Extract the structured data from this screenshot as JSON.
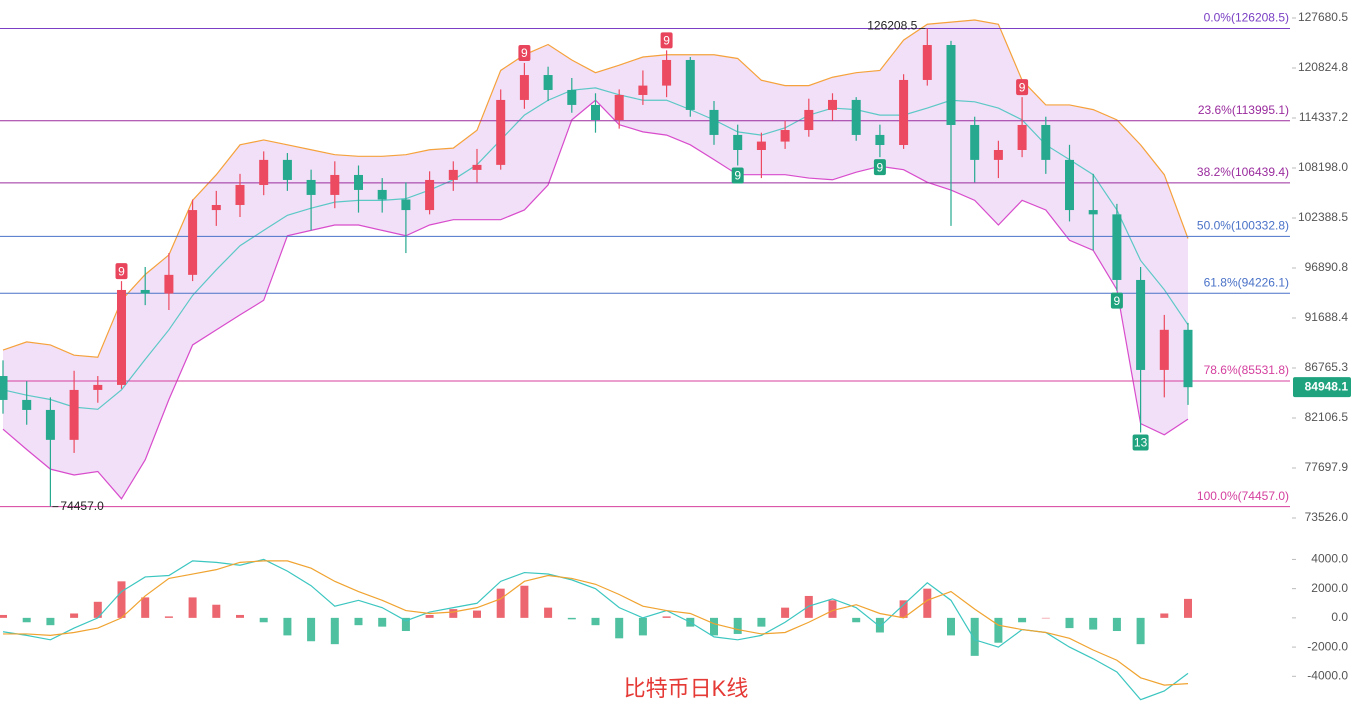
{
  "chart_data": [
    {
      "type": "candlestick",
      "title": "比特币日K线",
      "categories": [
        null,
        null,
        null,
        null,
        null,
        null,
        null,
        null,
        null,
        null,
        null,
        null,
        null,
        null,
        null,
        null,
        null,
        null,
        null,
        null,
        null,
        null,
        null,
        null,
        null,
        null,
        null,
        null,
        null,
        null,
        null,
        null,
        null,
        null,
        null,
        null,
        null,
        null,
        null,
        null,
        null,
        null,
        null,
        null,
        null,
        null,
        null,
        null,
        null,
        null,
        null
      ],
      "open": [
        86000,
        83760,
        82840,
        80150,
        84690,
        85160,
        94570,
        94200,
        96160,
        103290,
        103870,
        106190,
        109170,
        106780,
        105030,
        107370,
        105610,
        104500,
        103290,
        106780,
        107970,
        108570,
        116640,
        119890,
        117930,
        116000,
        114080,
        117280,
        118500,
        121900,
        115360,
        112220,
        110370,
        111400,
        112830,
        115360,
        116640,
        112220,
        110980,
        119240,
        123930,
        113460,
        109170,
        110370,
        113460,
        109170,
        103290,
        102800,
        95620,
        86580,
        90500
      ],
      "high": [
        87500,
        85500,
        84000,
        86500,
        86000,
        95500,
        97000,
        98500,
        104500,
        105500,
        107500,
        110200,
        110000,
        108000,
        109000,
        108500,
        107000,
        106500,
        107800,
        109000,
        110500,
        118000,
        121500,
        121000,
        119500,
        117500,
        118000,
        120500,
        123200,
        122300,
        116500,
        113500,
        112500,
        114000,
        116800,
        117500,
        117000,
        113500,
        120000,
        126208.5,
        124500,
        114500,
        111500,
        117000,
        114500,
        111000,
        107500,
        104000,
        97000,
        92000,
        91200
      ],
      "low": [
        82500,
        81500,
        74457,
        79000,
        83500,
        84800,
        93000,
        92500,
        95500,
        101500,
        102500,
        105000,
        105500,
        101000,
        103500,
        103000,
        103000,
        98500,
        102800,
        105500,
        106500,
        108000,
        115500,
        116500,
        115000,
        112500,
        113000,
        116000,
        117000,
        114500,
        111000,
        108500,
        107000,
        110500,
        112000,
        114000,
        111500,
        109500,
        110500,
        118500,
        101500,
        106500,
        107000,
        109500,
        107500,
        102000,
        98800,
        94500,
        80800,
        84000,
        83300
      ],
      "close": [
        83760,
        82840,
        80150,
        84690,
        85160,
        94570,
        94200,
        96160,
        103290,
        103870,
        106190,
        109170,
        106780,
        105030,
        107370,
        105610,
        104500,
        103290,
        106780,
        107970,
        108570,
        116640,
        119890,
        117930,
        116000,
        114080,
        117280,
        118500,
        121900,
        115360,
        112220,
        110370,
        111400,
        112830,
        115360,
        116640,
        112220,
        110980,
        119240,
        123930,
        113460,
        109170,
        110370,
        113460,
        109170,
        103290,
        102800,
        95620,
        86580,
        90500,
        84948.1
      ],
      "up_color": "#ec4a60",
      "down_color": "#26a98f",
      "bands": {
        "fill": "#eed6f5",
        "upper": {
          "color": "#f5a23c",
          "values": [
            88500,
            89300,
            89000,
            88000,
            87800,
            93500,
            96200,
            98300,
            104400,
            107400,
            111000,
            111600,
            111000,
            110400,
            109800,
            109600,
            109600,
            109800,
            110400,
            110600,
            112800,
            120500,
            122600,
            124000,
            121900,
            120200,
            121200,
            122300,
            122600,
            122600,
            122600,
            122100,
            119200,
            118500,
            118500,
            119600,
            120200,
            120500,
            124600,
            126800,
            127100,
            127400,
            126800,
            119200,
            116000,
            116000,
            115400,
            114100,
            111000,
            107400,
            100100
          ]
        },
        "middle": {
          "color": "#5cc8c6",
          "values": [
            84700,
            84200,
            83800,
            83100,
            82900,
            84700,
            87600,
            90500,
            94000,
            96700,
            99300,
            101000,
            102700,
            103500,
            104200,
            104400,
            104400,
            104600,
            105600,
            106800,
            108600,
            111600,
            114700,
            116600,
            117900,
            118200,
            117300,
            116600,
            116600,
            115400,
            114100,
            112600,
            112200,
            113100,
            114700,
            115600,
            115400,
            114700,
            114700,
            115600,
            116600,
            116400,
            115600,
            114100,
            111000,
            109200,
            107400,
            103300,
            97700,
            94600,
            91000
          ]
        },
        "lower": {
          "color": "#d84ccc",
          "values": [
            81100,
            79300,
            77600,
            77100,
            77400,
            75100,
            78400,
            83800,
            89000,
            90500,
            92000,
            93500,
            100400,
            101000,
            101600,
            101600,
            101000,
            100400,
            101600,
            102200,
            102200,
            102200,
            103300,
            106200,
            114100,
            116600,
            113500,
            112600,
            112200,
            111000,
            109200,
            107400,
            107400,
            107400,
            107000,
            106800,
            107700,
            108400,
            108000,
            106500,
            105600,
            104400,
            101600,
            104400,
            103300,
            99900,
            98800,
            94600,
            81600,
            80600,
            82000
          ]
        }
      },
      "fib_levels": [
        {
          "label": "0.0%(126208.5)",
          "value": 126208.5,
          "color": "#7a3fc4"
        },
        {
          "label": "23.6%(113995.1)",
          "value": 113995.1,
          "color": "#9a2c9e"
        },
        {
          "label": "38.2%(106439.4)",
          "value": 106439.4,
          "color": "#9a2c9e"
        },
        {
          "label": "50.0%(100332.8)",
          "value": 100332.8,
          "color": "#4a72c8"
        },
        {
          "label": "61.8%(94226.1)",
          "value": 94226.1,
          "color": "#4a72c8"
        },
        {
          "label": "78.6%(85531.8)",
          "value": 85531.8,
          "color": "#d43f9e"
        },
        {
          "label": "100.0%(74457.0)",
          "value": 74457,
          "color": "#d43f9e"
        }
      ],
      "log_scale": true,
      "ylim": [
        73526,
        127680.5
      ],
      "yticks": [
        127680.5,
        120824.8,
        114337.2,
        {
          "value": 108198,
          "label": "108198.0"
        },
        102388.5,
        96890.8,
        91688.4,
        86765.3,
        82106.5,
        77697.9,
        {
          "value": 73526,
          "label": "73526.0"
        }
      ],
      "last_price": 84948.1,
      "last_price_color": "#1fa37f",
      "extremes": [
        {
          "index": 39,
          "value": 126208.5,
          "label": "126208.5"
        },
        {
          "index": 2,
          "value": 74457,
          "label": "74457.0"
        }
      ],
      "td_marks": [
        {
          "index": 5,
          "text": "9",
          "color": "#e8455c",
          "side": "above"
        },
        {
          "index": 22,
          "text": "9",
          "color": "#e8455c",
          "side": "above"
        },
        {
          "index": 28,
          "text": "9",
          "color": "#e8455c",
          "side": "above"
        },
        {
          "index": 31,
          "text": "9",
          "color": "#1fa37f",
          "side": "below"
        },
        {
          "index": 37,
          "text": "9",
          "color": "#1fa37f",
          "side": "below"
        },
        {
          "index": 43,
          "text": "9",
          "color": "#e8455c",
          "side": "above"
        },
        {
          "index": 47,
          "text": "9",
          "color": "#1fa37f",
          "side": "below"
        },
        {
          "index": 48,
          "text": "13",
          "color": "#1fa37f",
          "side": "below"
        }
      ]
    },
    {
      "type": "macd",
      "categories": [
        null,
        null,
        null,
        null,
        null,
        null,
        null,
        null,
        null,
        null,
        null,
        null,
        null,
        null,
        null,
        null,
        null,
        null,
        null,
        null,
        null,
        null,
        null,
        null,
        null,
        null,
        null,
        null,
        null,
        null,
        null,
        null,
        null,
        null,
        null,
        null,
        null,
        null,
        null,
        null,
        null,
        null,
        null,
        null,
        null,
        null,
        null,
        null,
        null,
        null,
        null
      ],
      "histogram": {
        "up_color": "#ec6670",
        "down_color": "#4fc0a0",
        "values": [
          200,
          -300,
          -500,
          300,
          1100,
          2500,
          1400,
          100,
          1400,
          900,
          200,
          -300,
          -1200,
          -1600,
          -1800,
          -500,
          -600,
          -900,
          200,
          600,
          500,
          2000,
          2200,
          700,
          -100,
          -500,
          -1400,
          -1200,
          100,
          -600,
          -1200,
          -1100,
          -600,
          700,
          1500,
          1200,
          -300,
          -1000,
          1200,
          2000,
          -1200,
          -2600,
          -1700,
          -300,
          0,
          -700,
          -800,
          -900,
          -1800,
          300,
          1300
        ]
      },
      "lines": [
        {
          "color": "#3cc6c0",
          "values": [
            -950,
            -1200,
            -1500,
            -700,
            0,
            1800,
            2800,
            2900,
            3900,
            3800,
            3600,
            4000,
            3200,
            2200,
            800,
            1200,
            700,
            -200,
            400,
            700,
            1000,
            2500,
            3100,
            3000,
            2600,
            2000,
            700,
            0,
            500,
            -300,
            -1300,
            -1500,
            -1200,
            -300,
            800,
            1300,
            700,
            -600,
            900,
            2400,
            1200,
            -1500,
            -2000,
            -800,
            -1000,
            -2000,
            -2800,
            -3700,
            -5600,
            -5000,
            -3800
          ]
        },
        {
          "color": "#f0a330",
          "values": [
            -1100,
            -1100,
            -1200,
            -1000,
            -700,
            0,
            1500,
            2700,
            3000,
            3300,
            3800,
            3900,
            3900,
            3400,
            2500,
            1800,
            1200,
            500,
            300,
            400,
            700,
            1300,
            2500,
            2900,
            2700,
            2300,
            1600,
            800,
            500,
            300,
            -400,
            -800,
            -1100,
            -1000,
            -300,
            500,
            900,
            300,
            0,
            1200,
            1800,
            600,
            -500,
            -800,
            -1000,
            -1400,
            -2200,
            -2900,
            -4100,
            -4600,
            -4500
          ]
        }
      ],
      "ylim": [
        -6100,
        4850
      ],
      "yticks": [
        {
          "value": 4000,
          "label": "4000.0"
        },
        {
          "value": 2000,
          "label": "2000.0"
        },
        {
          "value": 0,
          "label": "0.0"
        },
        {
          "value": -2000,
          "label": "-2000.0"
        },
        {
          "value": -4000,
          "label": "-4000.0"
        }
      ]
    }
  ]
}
